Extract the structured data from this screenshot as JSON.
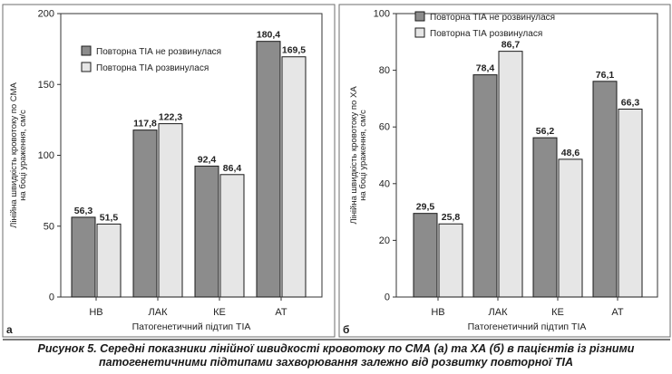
{
  "figure": {
    "caption_lead": "Рисунок 5.",
    "caption_line1": "Середні показники лінійної швидкості кровотоку по СМА (а) та ХА (б) в пацієнтів із різними",
    "caption_line2": "патогенетичними підтипами захворювання залежно від розвитку повторної ТІА"
  },
  "colors": {
    "series_dark": "#8c8c8c",
    "series_light": "#e6e6e6",
    "frame": "#6e6e6e",
    "separator": "#4d4d4d"
  },
  "chart_data": [
    {
      "type": "bar",
      "panel_label": "а",
      "xlabel": "Патогенетичний підтип ТІА",
      "ylabel_lines": [
        "Лінійна швидкість кровотоку по СМА",
        "на боці ураження, см/с"
      ],
      "categories": [
        "НВ",
        "ЛАК",
        "КЕ",
        "АТ"
      ],
      "ylim": [
        0,
        200
      ],
      "yticks": [
        0,
        50,
        100,
        150,
        200
      ],
      "grid": false,
      "legend_position": "top-left",
      "series": [
        {
          "name": "Повторна ТІА не розвинулася",
          "values": [
            56.3,
            117.8,
            92.4,
            180.4
          ],
          "labels": [
            "56,3",
            "117,8",
            "92,4",
            "180,4"
          ]
        },
        {
          "name": "Повторна ТІА розвинулася",
          "values": [
            51.5,
            122.3,
            86.4,
            169.5
          ],
          "labels": [
            "51,5",
            "122,3",
            "86,4",
            "169,5"
          ]
        }
      ]
    },
    {
      "type": "bar",
      "panel_label": "б",
      "xlabel": "Патогенетичний підтип ТІА",
      "ylabel_lines": [
        "Лінійна швидкість кровотоку по ХА",
        "на боці ураження, см/с"
      ],
      "categories": [
        "НВ",
        "ЛАК",
        "КЕ",
        "АТ"
      ],
      "ylim": [
        0,
        100
      ],
      "yticks": [
        0,
        20,
        40,
        60,
        80,
        100
      ],
      "grid": false,
      "legend_position": "top-left",
      "series": [
        {
          "name": "Повторна ТІА не розвинулася",
          "values": [
            29.5,
            78.4,
            56.2,
            76.1
          ],
          "labels": [
            "29,5",
            "78,4",
            "56,2",
            "76,1"
          ]
        },
        {
          "name": "Повторна ТІА розвинулася",
          "values": [
            25.8,
            86.7,
            48.6,
            66.3
          ],
          "labels": [
            "25,8",
            "86,7",
            "48,6",
            "66,3"
          ]
        }
      ]
    }
  ]
}
